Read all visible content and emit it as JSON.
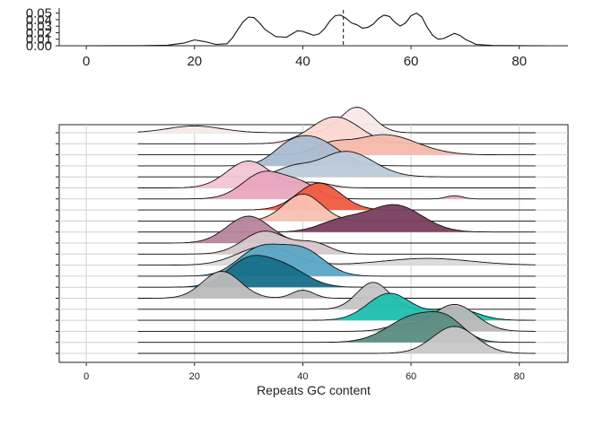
{
  "chart_data": [
    {
      "type": "line",
      "subtype": "density",
      "title": "",
      "xlabel": "",
      "ylabel": "",
      "xlim": [
        -5,
        89
      ],
      "ylim": [
        0,
        0.055
      ],
      "x_ticks": [
        0,
        20,
        40,
        60,
        80
      ],
      "y_ticks": [
        0.0,
        0.01,
        0.02,
        0.03,
        0.04,
        0.05
      ],
      "y_tick_labels": [
        "0.00",
        "0.01",
        "0.02",
        "0.03",
        "0.04",
        "0.05"
      ],
      "grid": false,
      "vline": 47.5,
      "series": [
        {
          "x": [
            0,
            10,
            15,
            18,
            20,
            22,
            24,
            26,
            27,
            28,
            29,
            30,
            31,
            32,
            33,
            35,
            37,
            38,
            39,
            40,
            41,
            42,
            43,
            44,
            45,
            46,
            47,
            48,
            49,
            50,
            51,
            52,
            53,
            54,
            55,
            56,
            57,
            58,
            59,
            60,
            61,
            62,
            63,
            64,
            65,
            66,
            67,
            68,
            69,
            70,
            72,
            75,
            80,
            85
          ],
          "y": [
            0,
            0.0002,
            0.0008,
            0.004,
            0.009,
            0.006,
            0.002,
            0.003,
            0.012,
            0.025,
            0.037,
            0.044,
            0.043,
            0.035,
            0.025,
            0.014,
            0.013,
            0.018,
            0.023,
            0.022,
            0.019,
            0.016,
            0.018,
            0.026,
            0.038,
            0.046,
            0.047,
            0.042,
            0.035,
            0.032,
            0.027,
            0.028,
            0.033,
            0.042,
            0.047,
            0.045,
            0.036,
            0.03,
            0.035,
            0.046,
            0.05,
            0.044,
            0.028,
            0.016,
            0.01,
            0.011,
            0.015,
            0.019,
            0.016,
            0.01,
            0.002,
            0.0004,
            0.0001,
            0
          ]
        }
      ]
    },
    {
      "type": "area",
      "subtype": "ridgeline",
      "title": "",
      "xlabel": "Repeats GC content",
      "ylabel": "",
      "xlim": [
        -5,
        89
      ],
      "x_ticks": [
        0,
        20,
        40,
        60,
        80
      ],
      "grid": true,
      "ridges": [
        {
          "color": "#f9e9e9",
          "peaks": [
            [
              50,
              0.95,
              3
            ],
            [
              20,
              0.25,
              5
            ]
          ]
        },
        {
          "color": "#fbd7d2",
          "peaks": [
            [
              46,
              1.0,
              4.5
            ]
          ]
        },
        {
          "color": "#f5b9ab",
          "peaks": [
            [
              55,
              0.75,
              6
            ],
            [
              45,
              0.3,
              3
            ]
          ]
        },
        {
          "color": "#a9bdd1",
          "peaks": [
            [
              42,
              1.0,
              4.5
            ],
            [
              37,
              0.35,
              3
            ]
          ]
        },
        {
          "color": "#bccad8",
          "peaks": [
            [
              48,
              0.95,
              5
            ],
            [
              38,
              0.3,
              3
            ]
          ]
        },
        {
          "color": "#f3c5d3",
          "peaks": [
            [
              30,
              1.0,
              4
            ],
            [
              42,
              0.2,
              3
            ]
          ]
        },
        {
          "color": "#e8a6bf",
          "peaks": [
            [
              33,
              1.0,
              4
            ],
            [
              40,
              0.45,
              3
            ],
            [
              68,
              0.12,
              1.5
            ]
          ]
        },
        {
          "color": "#f05a40",
          "peaks": [
            [
              43,
              1.0,
              4
            ]
          ]
        },
        {
          "color": "#f8c0b2",
          "peaks": [
            [
              40,
              1.0,
              3.5
            ]
          ]
        },
        {
          "color": "#7a3d5e",
          "peaks": [
            [
              57,
              1.0,
              5
            ],
            [
              47,
              0.4,
              4
            ]
          ]
        },
        {
          "color": "#b5849c",
          "peaks": [
            [
              30,
              1.0,
              4
            ]
          ]
        },
        {
          "color": "#d6c6cc",
          "peaks": [
            [
              33,
              0.85,
              4
            ],
            [
              42,
              0.4,
              3
            ]
          ]
        },
        {
          "color": "#d9d9d9",
          "peaks": [
            [
              33,
              0.7,
              5
            ],
            [
              63,
              0.25,
              8
            ]
          ]
        },
        {
          "color": "#5aa6c5",
          "peaks": [
            [
              32,
              1.0,
              4
            ],
            [
              40,
              0.95,
              4
            ]
          ]
        },
        {
          "color": "#176f8a",
          "peaks": [
            [
              30,
              1.0,
              4
            ],
            [
              37,
              0.65,
              4
            ]
          ]
        },
        {
          "color": "#b9b9b9",
          "peaks": [
            [
              25,
              1.0,
              3.5
            ],
            [
              40,
              0.3,
              2
            ]
          ]
        },
        {
          "color": "#c4c4c4",
          "peaks": [
            [
              53,
              1.0,
              3
            ]
          ]
        },
        {
          "color": "#1fbfaf",
          "peaks": [
            [
              56,
              1.0,
              4
            ],
            [
              68,
              0.45,
              4
            ]
          ]
        },
        {
          "color": "#b8b8b8",
          "peaks": [
            [
              68,
              1.0,
              4
            ],
            [
              58,
              0.2,
              3
            ]
          ]
        },
        {
          "color": "#5a8c82",
          "peaks": [
            [
              61,
              1.0,
              5
            ],
            [
              67,
              0.5,
              3
            ]
          ]
        },
        {
          "color": "#c8c8c8",
          "peaks": [
            [
              68,
              1.0,
              4
            ]
          ]
        }
      ]
    }
  ]
}
